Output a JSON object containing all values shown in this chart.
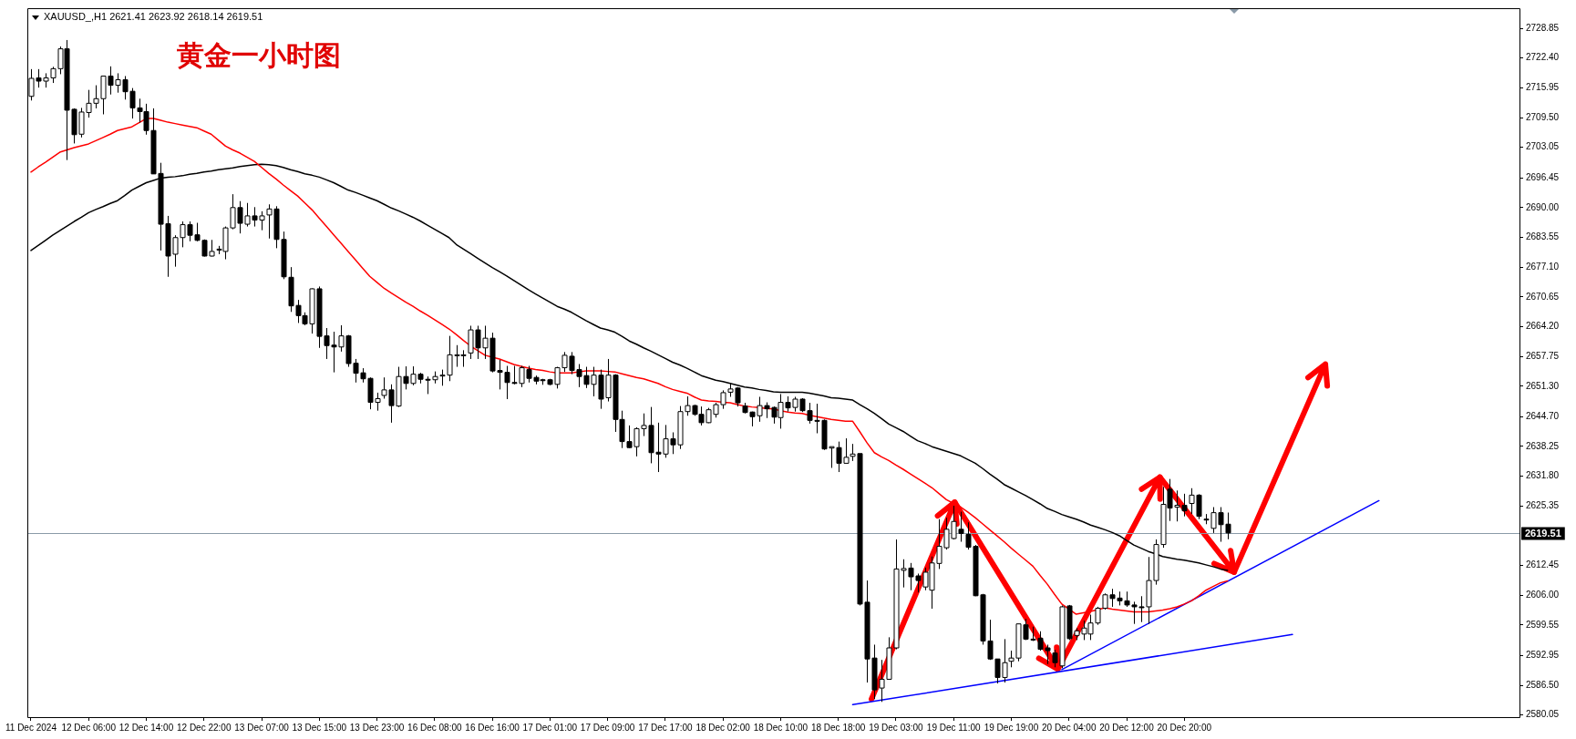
{
  "chart_data": {
    "type": "candlestick",
    "title": "XAUUSD_,H1  2621.41 2623.92 2618.14 2619.51",
    "subtitle": "黄金一小时图",
    "categories": [
      "11 Dec 2024",
      null,
      null,
      null,
      null,
      null,
      null,
      null,
      "12 Dec 06:00",
      null,
      null,
      null,
      null,
      null,
      null,
      null,
      "12 Dec 14:00",
      null,
      null,
      null,
      null,
      null,
      null,
      null,
      "12 Dec 22:00",
      null,
      null,
      null,
      null,
      null,
      null,
      null,
      "13 Dec 07:00",
      null,
      null,
      null,
      null,
      null,
      null,
      null,
      "13 Dec 15:00",
      null,
      null,
      null,
      null,
      null,
      null,
      null,
      "13 Dec 23:00",
      null,
      null,
      null,
      null,
      null,
      null,
      null,
      "16 Dec 08:00",
      null,
      null,
      null,
      null,
      null,
      null,
      null,
      "16 Dec 16:00",
      null,
      null,
      null,
      null,
      null,
      null,
      null,
      "17 Dec 01:00",
      null,
      null,
      null,
      null,
      null,
      null,
      null,
      "17 Dec 09:00",
      null,
      null,
      null,
      null,
      null,
      null,
      null,
      "17 Dec 17:00",
      null,
      null,
      null,
      null,
      null,
      null,
      null,
      "18 Dec 02:00",
      null,
      null,
      null,
      null,
      null,
      null,
      null,
      "18 Dec 10:00",
      null,
      null,
      null,
      null,
      null,
      null,
      null,
      "18 Dec 18:00",
      null,
      null,
      null,
      null,
      null,
      null,
      null,
      "19 Dec 03:00",
      null,
      null,
      null,
      null,
      null,
      null,
      null,
      "19 Dec 11:00",
      null,
      null,
      null,
      null,
      null,
      null,
      null,
      "19 Dec 19:00",
      null,
      null,
      null,
      null,
      null,
      null,
      null,
      "20 Dec 04:00",
      null,
      null,
      null,
      null,
      null,
      null,
      null,
      "20 Dec 12:00",
      null,
      null,
      null,
      null,
      null,
      null,
      null,
      "20 Dec 20:00",
      null,
      null,
      null,
      null,
      null,
      null,
      null,
      null,
      null,
      null,
      null,
      null,
      null,
      null,
      null,
      null,
      null,
      null,
      null,
      null,
      null,
      null,
      null,
      null,
      null,
      null,
      null,
      null,
      null,
      null,
      null,
      null,
      null,
      null,
      null,
      null,
      null,
      null,
      null,
      null,
      null,
      null,
      null,
      null,
      null,
      null
    ],
    "ohlc": [
      [
        2714.1,
        2720.0,
        2713.2,
        2718.0
      ],
      [
        2718.1,
        2720.0,
        2716.0,
        2717.4
      ],
      [
        2717.4,
        2719.1,
        2716.0,
        2718.1
      ],
      [
        2718.1,
        2720.5,
        2717.0,
        2720.1
      ],
      [
        2720.1,
        2724.9,
        2718.9,
        2724.4
      ],
      [
        2724.4,
        2726.3,
        2700.3,
        2711.1
      ],
      [
        2711.3,
        2711.5,
        2703.9,
        2705.8
      ],
      [
        2705.9,
        2711.6,
        2705.2,
        2710.7
      ],
      [
        2710.6,
        2715.5,
        2709.5,
        2712.6
      ],
      [
        2712.6,
        2716.5,
        2711.5,
        2713.6
      ],
      [
        2713.6,
        2718.5,
        2710.2,
        2718.5
      ],
      [
        2718.5,
        2720.6,
        2714.5,
        2716.5
      ],
      [
        2716.5,
        2719.1,
        2714.9,
        2717.7
      ],
      [
        2717.7,
        2718.5,
        2713.4,
        2715.1
      ],
      [
        2715.2,
        2715.9,
        2709.3,
        2711.6
      ],
      [
        2711.6,
        2713.6,
        2708.4,
        2710.8
      ],
      [
        2710.8,
        2712.5,
        2705.8,
        2706.7
      ],
      [
        2706.7,
        2711.5,
        2697.3,
        2697.3
      ],
      [
        2697.4,
        2699.7,
        2680.7,
        2686.4
      ],
      [
        2686.5,
        2688.2,
        2675.0,
        2679.5
      ],
      [
        2679.9,
        2684.0,
        2677.2,
        2683.5
      ],
      [
        2683.5,
        2687.0,
        2681.4,
        2686.3
      ],
      [
        2686.3,
        2687.0,
        2682.7,
        2684.0
      ],
      [
        2684.1,
        2686.7,
        2682.7,
        2682.9
      ],
      [
        2682.9,
        2683.1,
        2679.4,
        2679.5
      ],
      [
        2679.5,
        2683.0,
        2679.4,
        2680.5
      ],
      [
        2681.0,
        2681.7,
        2679.9,
        2680.8
      ],
      [
        2680.5,
        2685.9,
        2678.8,
        2685.6
      ],
      [
        2685.6,
        2692.9,
        2685.3,
        2690.0
      ],
      [
        2690.0,
        2691.4,
        2684.4,
        2686.6
      ],
      [
        2686.4,
        2691.0,
        2685.9,
        2688.2
      ],
      [
        2688.2,
        2690.1,
        2685.9,
        2687.3
      ],
      [
        2687.3,
        2689.2,
        2685.1,
        2688.2
      ],
      [
        2688.4,
        2690.7,
        2683.3,
        2689.7
      ],
      [
        2689.7,
        2690.3,
        2681.2,
        2683.1
      ],
      [
        2683.1,
        2684.8,
        2674.5,
        2675.0
      ],
      [
        2674.9,
        2677.1,
        2667.4,
        2668.7
      ],
      [
        2668.8,
        2670.0,
        2665.0,
        2666.6
      ],
      [
        2666.6,
        2667.3,
        2664.5,
        2664.8
      ],
      [
        2664.8,
        2672.5,
        2662.7,
        2672.4
      ],
      [
        2672.4,
        2672.9,
        2659.6,
        2662.1
      ],
      [
        2662.2,
        2663.9,
        2657.2,
        2660.1
      ],
      [
        2660.2,
        2663.1,
        2654.3,
        2659.8
      ],
      [
        2659.8,
        2664.5,
        2658.8,
        2662.2
      ],
      [
        2662.2,
        2662.4,
        2655.5,
        2656.2
      ],
      [
        2656.3,
        2657.2,
        2652.1,
        2654.1
      ],
      [
        2654.2,
        2655.2,
        2652.1,
        2652.9
      ],
      [
        2653.0,
        2653.2,
        2646.3,
        2647.8
      ],
      [
        2647.8,
        2649.9,
        2646.0,
        2648.6
      ],
      [
        2649.3,
        2653.2,
        2648.6,
        2650.5
      ],
      [
        2650.5,
        2651.7,
        2643.4,
        2647.1
      ],
      [
        2647.0,
        2655.5,
        2646.8,
        2653.4
      ],
      [
        2653.4,
        2655.6,
        2650.6,
        2651.9
      ],
      [
        2651.9,
        2655.6,
        2651.5,
        2653.9
      ],
      [
        2653.9,
        2654.2,
        2651.9,
        2652.8
      ],
      [
        2652.8,
        2653.4,
        2649.6,
        2652.7
      ],
      [
        2652.7,
        2654.5,
        2651.9,
        2653.4
      ],
      [
        2653.6,
        2654.9,
        2651.4,
        2653.7
      ],
      [
        2653.7,
        2662.2,
        2652.4,
        2658.1
      ],
      [
        2658.0,
        2660.2,
        2655.5,
        2658.1
      ],
      [
        2658.0,
        2659.1,
        2655.5,
        2658.1
      ],
      [
        2658.5,
        2664.4,
        2657.2,
        2663.5
      ],
      [
        2663.5,
        2664.4,
        2657.2,
        2659.6
      ],
      [
        2659.6,
        2664.4,
        2657.2,
        2661.7
      ],
      [
        2661.7,
        2662.9,
        2654.3,
        2654.6
      ],
      [
        2654.7,
        2657.0,
        2650.6,
        2654.3
      ],
      [
        2654.3,
        2655.7,
        2648.5,
        2652.1
      ],
      [
        2652.1,
        2655.7,
        2651.7,
        2652.0
      ],
      [
        2651.9,
        2655.7,
        2651.1,
        2655.3
      ],
      [
        2654.9,
        2655.7,
        2652.1,
        2653.0
      ],
      [
        2653.2,
        2653.6,
        2651.7,
        2652.4
      ],
      [
        2652.7,
        2652.9,
        2651.6,
        2652.6
      ],
      [
        2652.7,
        2652.9,
        2651.5,
        2651.7
      ],
      [
        2651.7,
        2655.5,
        2650.8,
        2655.3
      ],
      [
        2655.3,
        2658.7,
        2654.4,
        2658.0
      ],
      [
        2657.8,
        2658.7,
        2653.9,
        2654.7
      ],
      [
        2654.9,
        2656.1,
        2651.1,
        2653.4
      ],
      [
        2653.6,
        2655.5,
        2650.9,
        2651.7
      ],
      [
        2651.7,
        2655.5,
        2649.1,
        2653.7
      ],
      [
        2653.7,
        2654.9,
        2646.4,
        2648.5
      ],
      [
        2648.8,
        2657.2,
        2648.0,
        2653.7
      ],
      [
        2653.7,
        2653.9,
        2641.4,
        2644.1
      ],
      [
        2644.1,
        2646.0,
        2637.9,
        2639.3
      ],
      [
        2639.3,
        2642.8,
        2637.9,
        2638.0
      ],
      [
        2638.2,
        2642.4,
        2636.1,
        2642.1
      ],
      [
        2642.1,
        2645.4,
        2640.5,
        2642.8
      ],
      [
        2642.8,
        2646.8,
        2634.6,
        2636.9
      ],
      [
        2637.0,
        2643.4,
        2632.7,
        2636.6
      ],
      [
        2636.6,
        2642.9,
        2635.8,
        2639.9
      ],
      [
        2639.9,
        2641.3,
        2636.6,
        2638.6
      ],
      [
        2638.6,
        2647.0,
        2637.7,
        2645.8
      ],
      [
        2645.8,
        2649.1,
        2644.9,
        2647.1
      ],
      [
        2647.1,
        2647.3,
        2644.9,
        2645.2
      ],
      [
        2645.2,
        2646.9,
        2642.8,
        2643.4
      ],
      [
        2643.4,
        2646.6,
        2643.3,
        2646.2
      ],
      [
        2645.2,
        2647.7,
        2644.5,
        2647.3
      ],
      [
        2647.3,
        2650.4,
        2646.4,
        2649.9
      ],
      [
        2650.0,
        2651.9,
        2649.0,
        2650.7
      ],
      [
        2650.9,
        2651.1,
        2646.9,
        2647.7
      ],
      [
        2647.0,
        2647.7,
        2645.4,
        2645.6
      ],
      [
        2645.7,
        2645.8,
        2642.6,
        2644.7
      ],
      [
        2644.9,
        2649.0,
        2643.6,
        2647.1
      ],
      [
        2647.1,
        2647.8,
        2644.4,
        2646.4
      ],
      [
        2646.7,
        2646.9,
        2643.2,
        2644.6
      ],
      [
        2644.5,
        2649.6,
        2642.1,
        2647.8
      ],
      [
        2647.8,
        2649.1,
        2645.8,
        2646.6
      ],
      [
        2646.7,
        2649.0,
        2645.8,
        2648.5
      ],
      [
        2648.5,
        2648.7,
        2645.7,
        2646.0
      ],
      [
        2646.0,
        2647.7,
        2643.2,
        2643.9
      ],
      [
        2643.9,
        2647.5,
        2641.1,
        2643.8
      ],
      [
        2643.9,
        2644.1,
        2637.5,
        2637.7
      ],
      [
        2637.9,
        2638.2,
        2633.6,
        2638.2
      ],
      [
        2638.0,
        2639.3,
        2632.7,
        2634.6
      ],
      [
        2634.6,
        2640.0,
        2634.6,
        2635.9
      ],
      [
        2636.1,
        2638.8,
        2635.1,
        2636.6
      ],
      [
        2636.7,
        2636.7,
        2603.8,
        2604.1
      ],
      [
        2604.5,
        2609.2,
        2587.1,
        2592.2
      ],
      [
        2592.4,
        2595.3,
        2583.5,
        2585.5
      ],
      [
        2585.9,
        2592.0,
        2582.9,
        2587.8
      ],
      [
        2587.8,
        2596.9,
        2587.8,
        2594.6
      ],
      [
        2594.6,
        2618.1,
        2594.3,
        2611.7
      ],
      [
        2611.4,
        2613.8,
        2607.7,
        2611.8
      ],
      [
        2611.9,
        2613.0,
        2607.1,
        2610.0
      ],
      [
        2610.2,
        2610.7,
        2606.6,
        2609.2
      ],
      [
        2607.8,
        2612.0,
        2607.1,
        2611.0
      ],
      [
        2607.1,
        2614.4,
        2603.1,
        2613.0
      ],
      [
        2612.9,
        2622.5,
        2611.7,
        2616.6
      ],
      [
        2616.3,
        2622.8,
        2615.9,
        2620.3
      ],
      [
        2618.3,
        2625.4,
        2618.1,
        2622.0
      ],
      [
        2620.3,
        2624.1,
        2617.6,
        2619.4
      ],
      [
        2619.2,
        2621.8,
        2615.9,
        2616.4
      ],
      [
        2616.6,
        2616.9,
        2605.8,
        2605.9
      ],
      [
        2606.1,
        2606.3,
        2595.3,
        2596.1
      ],
      [
        2596.1,
        2600.7,
        2592.0,
        2592.2
      ],
      [
        2592.2,
        2592.2,
        2586.9,
        2588.2
      ],
      [
        2588.2,
        2596.5,
        2587.1,
        2591.4
      ],
      [
        2591.7,
        2594.0,
        2590.4,
        2592.4
      ],
      [
        2592.4,
        2599.8,
        2591.7,
        2599.8
      ],
      [
        2599.6,
        2600.9,
        2596.3,
        2596.5
      ],
      [
        2596.5,
        2599.2,
        2596.1,
        2596.4
      ],
      [
        2596.7,
        2598.2,
        2594.0,
        2594.3
      ],
      [
        2594.6,
        2595.3,
        2591.1,
        2594.0
      ],
      [
        2593.5,
        2594.2,
        2590.4,
        2591.4
      ],
      [
        2590.7,
        2603.8,
        2590.2,
        2603.5
      ],
      [
        2603.7,
        2603.9,
        2596.3,
        2596.6
      ],
      [
        2597.3,
        2598.9,
        2596.3,
        2598.3
      ],
      [
        2597.6,
        2600.5,
        2596.3,
        2598.9
      ],
      [
        2597.6,
        2601.8,
        2596.3,
        2600.0
      ],
      [
        2600.0,
        2603.5,
        2599.6,
        2603.2
      ],
      [
        2603.2,
        2606.4,
        2602.9,
        2606.1
      ],
      [
        2606.1,
        2607.4,
        2603.5,
        2605.3
      ],
      [
        2605.4,
        2606.8,
        2603.8,
        2604.8
      ],
      [
        2604.8,
        2606.8,
        2603.5,
        2603.9
      ],
      [
        2603.9,
        2604.6,
        2599.8,
        2603.5
      ],
      [
        2603.5,
        2605.8,
        2600.2,
        2603.4
      ],
      [
        2603.5,
        2614.3,
        2599.8,
        2609.2
      ],
      [
        2609.2,
        2618.1,
        2608.3,
        2617.0
      ],
      [
        2617.0,
        2629.5,
        2616.3,
        2625.7
      ],
      [
        2629.0,
        2631.2,
        2622.1,
        2624.9
      ],
      [
        2625.1,
        2628.7,
        2622.0,
        2625.5
      ],
      [
        2625.5,
        2628.0,
        2623.1,
        2624.3
      ],
      [
        2625.9,
        2629.2,
        2623.6,
        2627.7
      ],
      [
        2627.7,
        2627.9,
        2622.5,
        2623.1
      ],
      [
        2622.5,
        2623.6,
        2621.4,
        2622.4
      ],
      [
        2620.5,
        2625.1,
        2619.5,
        2623.9
      ],
      [
        2623.9,
        2625.1,
        2617.6,
        2621.3
      ],
      [
        2621.41,
        2623.92,
        2618.14,
        2619.51
      ],
      null,
      null,
      null,
      null,
      null,
      null,
      null,
      null,
      null,
      null,
      null,
      null,
      null,
      null,
      null,
      null,
      null,
      null,
      null,
      null,
      null,
      null,
      null,
      null,
      null,
      null,
      null,
      null,
      null,
      null,
      null,
      null,
      null,
      null,
      null,
      null,
      null,
      null,
      null,
      null
    ],
    "series": [
      {
        "type": "line",
        "color": "#ff0000",
        "values": [
          2697.7,
          2698.8,
          2699.8,
          2700.9,
          2702.0,
          2702.5,
          2703.0,
          2703.4,
          2703.8,
          2704.5,
          2705.2,
          2705.9,
          2706.7,
          2707.1,
          2707.5,
          2708.4,
          2709.3,
          2709.3,
          2708.9,
          2708.5,
          2708.2,
          2707.9,
          2707.6,
          2707.3,
          2706.6,
          2705.9,
          2704.6,
          2703.3,
          2702.5,
          2701.8,
          2700.9,
          2700.0,
          2698.7,
          2697.4,
          2696.2,
          2694.9,
          2693.7,
          2692.5,
          2691.0,
          2689.5,
          2687.7,
          2685.9,
          2684.1,
          2682.3,
          2680.5,
          2678.7,
          2676.9,
          2675.1,
          2673.8,
          2672.5,
          2671.5,
          2670.5,
          2669.5,
          2668.6,
          2667.6,
          2666.7,
          2665.7,
          2664.7,
          2663.7,
          2662.5,
          2661.2,
          2660.0,
          2659.0,
          2658.0,
          2657.6,
          2657.2,
          2656.6,
          2656.0,
          2655.6,
          2655.2,
          2654.9,
          2654.7,
          2654.4,
          2654.2,
          2654.2,
          2654.2,
          2654.4,
          2654.6,
          2654.6,
          2654.6,
          2654.5,
          2654.4,
          2654.0,
          2653.6,
          2653.2,
          2652.9,
          2652.4,
          2651.9,
          2651.2,
          2650.6,
          2650.2,
          2649.8,
          2649.0,
          2648.3,
          2648.1,
          2648.0,
          2647.8,
          2647.7,
          2647.3,
          2647.0,
          2646.8,
          2646.7,
          2646.5,
          2646.4,
          2646.0,
          2645.7,
          2645.5,
          2645.4,
          2645.0,
          2644.7,
          2644.4,
          2644.1,
          2643.9,
          2643.7,
          2643.7,
          2641.4,
          2639.0,
          2636.9,
          2636.0,
          2635.2,
          2634.2,
          2633.3,
          2632.3,
          2631.3,
          2630.3,
          2629.3,
          2628.0,
          2626.7,
          2625.9,
          2625.1,
          2624.0,
          2622.8,
          2621.5,
          2620.2,
          2618.9,
          2617.6,
          2616.2,
          2614.9,
          2613.6,
          2612.3,
          2610.3,
          2608.4,
          2606.2,
          2604.1,
          2603.0,
          2601.9,
          2602.2,
          2602.5,
          2602.9,
          2603.3,
          2603.0,
          2602.8,
          2602.6,
          2602.4,
          2602.4,
          2602.4,
          2602.6,
          2602.8,
          2603.1,
          2603.5,
          2604.1,
          2604.8,
          2605.9,
          2607.1,
          2607.9,
          2608.7,
          2609.1,
          null,
          null,
          null,
          null,
          null,
          null,
          null,
          null,
          null,
          null,
          null,
          null,
          null,
          null,
          null,
          null,
          null,
          null,
          null,
          null,
          null,
          null,
          null,
          null,
          null,
          null,
          null,
          null,
          null,
          null,
          null,
          null,
          null,
          null,
          null,
          null,
          null,
          null,
          null,
          null
        ]
      },
      {
        "type": "line",
        "color": "#000000",
        "values": [
          2680.7,
          2681.8,
          2682.9,
          2684.0,
          2685.0,
          2686.0,
          2687.0,
          2687.9,
          2688.9,
          2689.6,
          2690.2,
          2690.9,
          2691.5,
          2692.6,
          2693.8,
          2694.6,
          2695.4,
          2695.9,
          2696.4,
          2696.6,
          2696.7,
          2696.9,
          2697.2,
          2697.4,
          2697.7,
          2697.9,
          2698.2,
          2698.4,
          2698.6,
          2698.9,
          2699.1,
          2699.3,
          2699.4,
          2699.3,
          2699.1,
          2698.7,
          2698.2,
          2697.8,
          2697.3,
          2697.0,
          2696.6,
          2696.0,
          2695.4,
          2694.6,
          2693.8,
          2693.3,
          2692.7,
          2692.1,
          2691.5,
          2690.7,
          2689.9,
          2689.3,
          2688.6,
          2687.9,
          2687.1,
          2686.2,
          2685.3,
          2684.4,
          2683.5,
          2682.0,
          2681.0,
          2680.0,
          2679.0,
          2678.0,
          2677.0,
          2676.1,
          2675.2,
          2674.2,
          2673.2,
          2672.2,
          2671.3,
          2670.4,
          2669.5,
          2668.6,
          2668.0,
          2667.3,
          2666.4,
          2665.5,
          2664.7,
          2663.9,
          2663.5,
          2663.0,
          2662.1,
          2661.1,
          2660.4,
          2659.6,
          2658.9,
          2658.1,
          2657.3,
          2656.5,
          2655.9,
          2655.2,
          2654.4,
          2653.6,
          2653.1,
          2652.6,
          2652.3,
          2651.9,
          2651.5,
          2651.1,
          2650.9,
          2650.6,
          2650.4,
          2650.1,
          2650.0,
          2650.0,
          2650.0,
          2650.0,
          2649.8,
          2649.5,
          2649.2,
          2648.8,
          2648.7,
          2648.5,
          2648.3,
          2647.3,
          2646.4,
          2645.4,
          2644.3,
          2643.1,
          2642.3,
          2641.5,
          2640.5,
          2639.5,
          2638.9,
          2638.2,
          2637.7,
          2637.2,
          2636.7,
          2636.2,
          2635.4,
          2634.6,
          2633.5,
          2632.3,
          2631.2,
          2630.0,
          2629.2,
          2628.4,
          2627.6,
          2626.7,
          2625.8,
          2624.8,
          2624.2,
          2623.5,
          2623.0,
          2622.5,
          2621.9,
          2621.2,
          2620.7,
          2620.2,
          2619.6,
          2618.9,
          2617.9,
          2616.9,
          2616.2,
          2615.5,
          2615.0,
          2614.4,
          2614.1,
          2613.8,
          2613.6,
          2613.3,
          2613.0,
          2612.6,
          2612.2,
          2611.7,
          2611.4,
          null,
          null,
          null,
          null,
          null,
          null,
          null,
          null,
          null,
          null,
          null,
          null,
          null,
          null,
          null,
          null,
          null,
          null,
          null,
          null,
          null,
          null,
          null,
          null,
          null,
          null,
          null,
          null,
          null,
          null,
          null,
          null,
          null,
          null,
          null,
          null,
          null,
          null,
          null,
          null
        ]
      },
      {
        "type": "line",
        "color": "#0000ff",
        "values": [
          null,
          null,
          null,
          null,
          null,
          null,
          null,
          null,
          null,
          null,
          null,
          null,
          null,
          null,
          null,
          null,
          null,
          null,
          null,
          null,
          null,
          null,
          null,
          null,
          null,
          null,
          null,
          null,
          null,
          null,
          null,
          null,
          null,
          null,
          null,
          null,
          null,
          null,
          null,
          null,
          null,
          null,
          null,
          null,
          null,
          null,
          null,
          null,
          null,
          null,
          null,
          null,
          null,
          null,
          null,
          null,
          null,
          null,
          null,
          null,
          null,
          null,
          null,
          null,
          null,
          null,
          null,
          null,
          null,
          null,
          null,
          null,
          null,
          null,
          null,
          null,
          null,
          null,
          null,
          null,
          null,
          null,
          null,
          null,
          null,
          null,
          null,
          null,
          null,
          null,
          null,
          null,
          null,
          null,
          null,
          null,
          null,
          null,
          null,
          null,
          null,
          null,
          null,
          null,
          null,
          null,
          null,
          null,
          null,
          null,
          null,
          null,
          null,
          null,
          2582.3,
          null,
          null,
          null,
          null,
          null,
          null,
          null,
          null,
          null,
          null,
          null,
          null,
          null,
          null,
          null,
          null,
          null,
          null,
          null,
          null,
          null,
          null,
          null,
          null,
          null,
          null,
          null,
          null,
          null,
          null,
          null,
          null,
          null,
          null,
          null,
          null,
          null,
          null,
          null,
          null,
          null,
          null,
          null,
          null,
          null,
          null,
          null,
          null,
          null,
          null,
          null,
          null,
          null,
          null,
          null,
          null,
          null,
          null,
          null,
          null,
          2597.5,
          null,
          null,
          null,
          null,
          null,
          null,
          null,
          null,
          null,
          null,
          null,
          null,
          null,
          null,
          null,
          null,
          null,
          null,
          null,
          null,
          null,
          null,
          null,
          null,
          null,
          null,
          null,
          null,
          null,
          null,
          null
        ]
      },
      {
        "type": "line",
        "color": "#0000ff",
        "values": [
          null,
          null,
          null,
          null,
          null,
          null,
          null,
          null,
          null,
          null,
          null,
          null,
          null,
          null,
          null,
          null,
          null,
          null,
          null,
          null,
          null,
          null,
          null,
          null,
          null,
          null,
          null,
          null,
          null,
          null,
          null,
          null,
          null,
          null,
          null,
          null,
          null,
          null,
          null,
          null,
          null,
          null,
          null,
          null,
          null,
          null,
          null,
          null,
          null,
          null,
          null,
          null,
          null,
          null,
          null,
          null,
          null,
          null,
          null,
          null,
          null,
          null,
          null,
          null,
          null,
          null,
          null,
          null,
          null,
          null,
          null,
          null,
          null,
          null,
          null,
          null,
          null,
          null,
          null,
          null,
          null,
          null,
          null,
          null,
          null,
          null,
          null,
          null,
          null,
          null,
          null,
          null,
          null,
          null,
          null,
          null,
          null,
          null,
          null,
          null,
          null,
          null,
          null,
          null,
          null,
          null,
          null,
          null,
          null,
          null,
          null,
          null,
          null,
          null,
          null,
          null,
          null,
          null,
          null,
          null,
          null,
          null,
          null,
          null,
          null,
          null,
          null,
          null,
          null,
          null,
          null,
          null,
          null,
          null,
          null,
          null,
          null,
          null,
          null,
          null,
          null,
          null,
          null,
          2589.9,
          null,
          null,
          null,
          null,
          null,
          null,
          null,
          null,
          null,
          null,
          null,
          null,
          null,
          null,
          null,
          null,
          null,
          null,
          null,
          null,
          null,
          null,
          null,
          null,
          null,
          null,
          null,
          null,
          null,
          null,
          null,
          null,
          null,
          null,
          null,
          null,
          null,
          null,
          null,
          null,
          null,
          null,
          null,
          2626.5,
          null,
          null,
          null,
          null,
          null,
          null,
          null,
          null,
          null,
          null,
          null,
          null,
          null,
          null,
          null,
          null,
          null,
          null,
          null
        ]
      }
    ],
    "ylim": [
      2579.6,
      2733.2
    ],
    "yticks": [
      2728.85,
      {
        "value": 2722.4,
        "label": "2722.40"
      },
      2715.95,
      {
        "value": 2709.5,
        "label": "2709.50"
      },
      2703.05,
      2696.45,
      {
        "value": 2690,
        "label": "2690.00"
      },
      2683.55,
      {
        "value": 2677.1,
        "label": "2677.10"
      },
      2670.65,
      {
        "value": 2664.2,
        "label": "2664.20"
      },
      2657.75,
      {
        "value": 2651.3,
        "label": "2651.30"
      },
      {
        "value": 2644.7,
        "label": "2644.70"
      },
      2638.25,
      {
        "value": 2631.8,
        "label": "2631.80"
      },
      2625.35,
      2612.45,
      {
        "value": 2606,
        "label": "2606.00"
      },
      2599.55,
      2592.95,
      {
        "value": 2586.5,
        "label": "2586.50"
      },
      2580.05
    ],
    "ref_lines": [
      {
        "axis": "y",
        "value": 2619.51,
        "label": "2619.51",
        "color": "#8a9aa8"
      }
    ]
  }
}
